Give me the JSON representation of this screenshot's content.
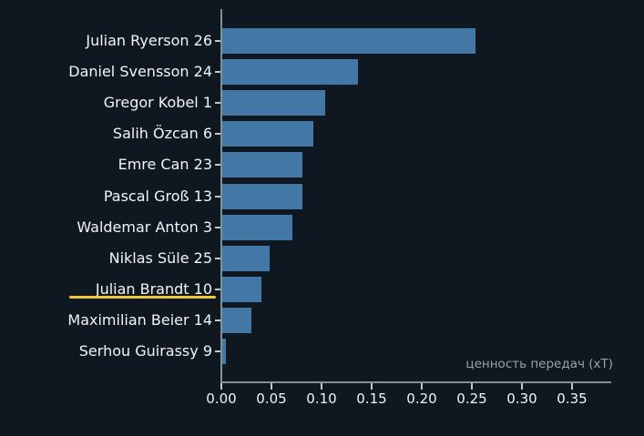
{
  "chart_data": {
    "type": "bar",
    "orientation": "horizontal",
    "title": "",
    "xlabel": "ценность передач (xT)",
    "ylabel": "",
    "categories": [
      "Julian Ryerson 26",
      "Daniel Svensson 24",
      "Gregor Kobel 1",
      "Salih Özcan 6",
      "Emre Can 23",
      "Pascal Groß 13",
      "Waldemar Anton 3",
      "Niklas Süle 25",
      "Julian Brandt 10",
      "Maximilian Beier 14",
      "Serhou Guirassy 9"
    ],
    "values": [
      0.253,
      0.135,
      0.103,
      0.091,
      0.08,
      0.08,
      0.07,
      0.047,
      0.039,
      0.029,
      0.004
    ],
    "highlighted_category": "Julian Brandt 10",
    "x_ticks": [
      "0.00",
      "0.05",
      "0.10",
      "0.15",
      "0.20",
      "0.25",
      "0.30",
      "0.35"
    ],
    "x_tick_values": [
      0.0,
      0.05,
      0.1,
      0.15,
      0.2,
      0.25,
      0.3,
      0.35
    ],
    "xlim": [
      0,
      0.388
    ],
    "grid": false,
    "legend": "none",
    "colors": {
      "background": "#0f1821",
      "bar": "#4378a6",
      "axis": "#7f9194",
      "tick": "#c3c9cb",
      "text": "#f2f4f5",
      "annotation": "#97a2a9",
      "highlight_underline": "#eec73c"
    }
  }
}
